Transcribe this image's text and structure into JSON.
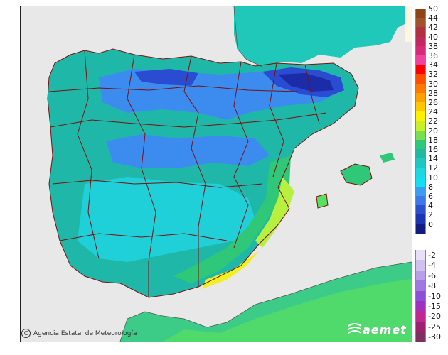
{
  "map": {
    "credit": "Agencia Estatal de Meteorología",
    "logo_text": "aemet",
    "colors": {
      "sea": "#e8e8e8",
      "land_main": "#1fb8a8",
      "land_cyan": "#1fd0d8",
      "land_blue": "#3c8cf0",
      "land_darkblue": "#2a4cd0",
      "land_deepblue": "#1c2ca8",
      "land_green": "#2ec878",
      "land_lightgreen": "#58e060",
      "land_yellowgreen": "#b8f040",
      "land_yellow": "#f0f020",
      "border": "#7a1010",
      "france": "#ffffff",
      "africa": "#e0ffe0"
    }
  },
  "legend": {
    "positive": [
      {
        "label": "50",
        "color": "#8b4513"
      },
      {
        "label": "44",
        "color": "#a0522d"
      },
      {
        "label": "42",
        "color": "#b03040"
      },
      {
        "label": "40",
        "color": "#c02860"
      },
      {
        "label": "38",
        "color": "#d82878"
      },
      {
        "label": "36",
        "color": "#f040a0"
      },
      {
        "label": "34",
        "color": "#ff0000"
      },
      {
        "label": "32",
        "color": "#ff5000"
      },
      {
        "label": "30",
        "color": "#ff7800"
      },
      {
        "label": "28",
        "color": "#ffa000"
      },
      {
        "label": "26",
        "color": "#ffc800"
      },
      {
        "label": "24",
        "color": "#fff000"
      },
      {
        "label": "22",
        "color": "#c8f028"
      },
      {
        "label": "20",
        "color": "#78e050"
      },
      {
        "label": "18",
        "color": "#2ec878"
      },
      {
        "label": "16",
        "color": "#20b8a0"
      },
      {
        "label": "14",
        "color": "#1cc8c0"
      },
      {
        "label": "12",
        "color": "#1cd8e0"
      },
      {
        "label": "10",
        "color": "#10e0f0"
      },
      {
        "label": "8",
        "color": "#3c9cf0"
      },
      {
        "label": "6",
        "color": "#3c78e8"
      },
      {
        "label": "4",
        "color": "#2a50d0"
      },
      {
        "label": "2",
        "color": "#1c34b0"
      },
      {
        "label": "0",
        "color": "#101c80"
      }
    ],
    "negative": [
      {
        "label": "-2",
        "color": "#e8e0f8"
      },
      {
        "label": "-4",
        "color": "#d0c0f0"
      },
      {
        "label": "-6",
        "color": "#b8a0e8"
      },
      {
        "label": "-8",
        "color": "#a078e0"
      },
      {
        "label": "-10",
        "color": "#8c50d8"
      },
      {
        "label": "-15",
        "color": "#a030c0"
      },
      {
        "label": "-20",
        "color": "#c02890"
      },
      {
        "label": "-25",
        "color": "#a02070"
      },
      {
        "label": "-30",
        "color": "#803060"
      }
    ]
  }
}
